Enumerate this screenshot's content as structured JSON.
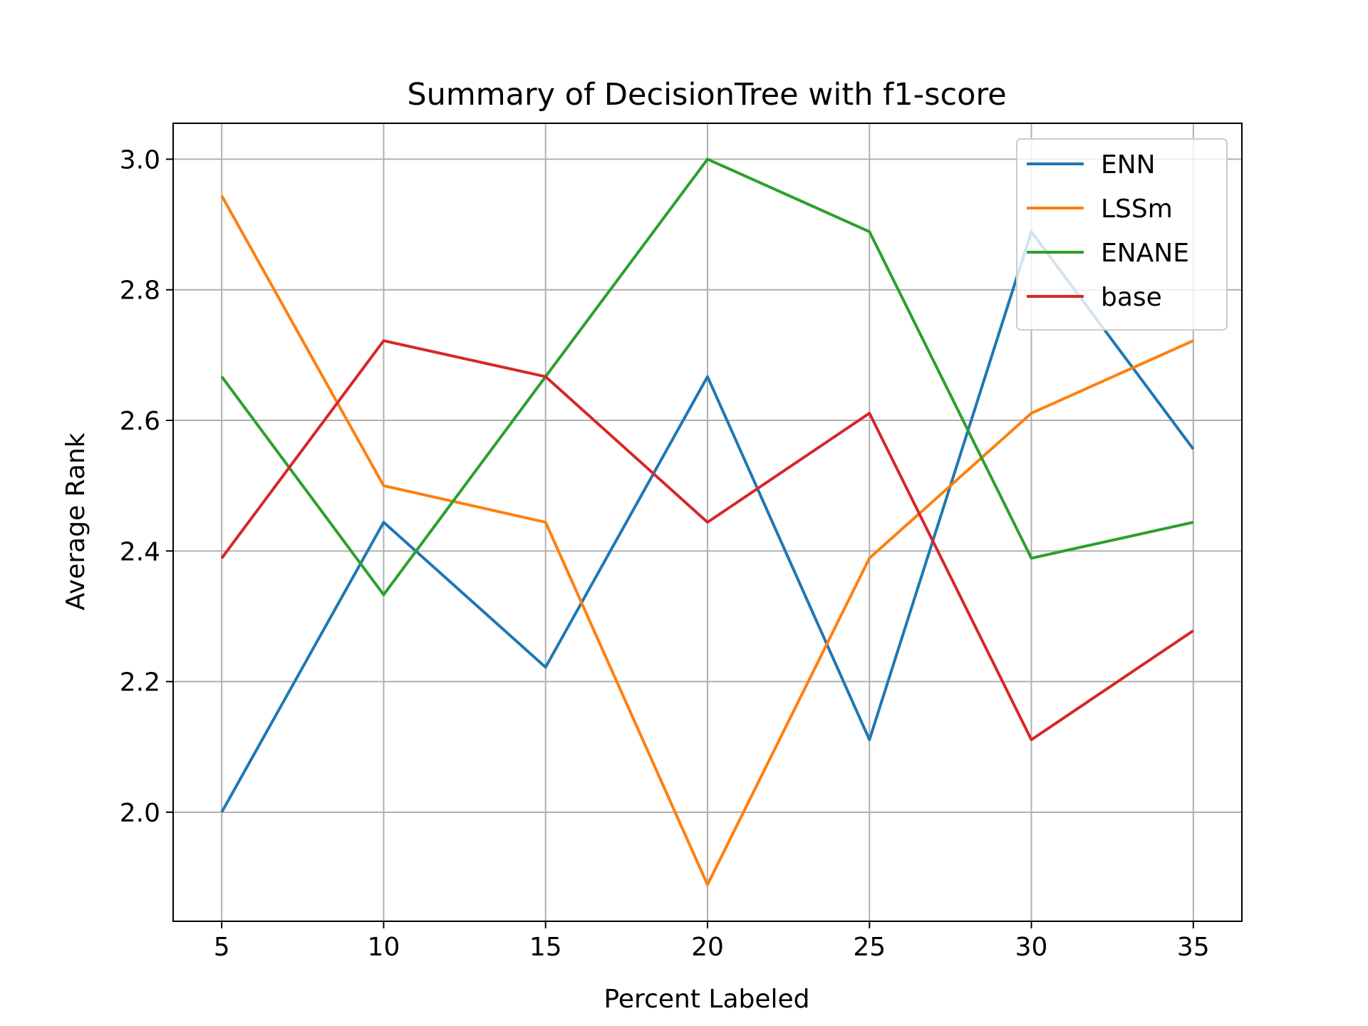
{
  "chart_data": {
    "type": "line",
    "title": "Summary of DecisionTree with f1-score",
    "xlabel": "Percent Labeled",
    "ylabel": "Average Rank",
    "x": [
      5,
      10,
      15,
      20,
      25,
      30,
      35
    ],
    "xticks": [
      5,
      10,
      15,
      20,
      25,
      30,
      35
    ],
    "yticks": [
      2.0,
      2.2,
      2.4,
      2.6,
      2.8,
      3.0
    ],
    "xlim": [
      3.5,
      36.5
    ],
    "ylim": [
      1.833,
      3.055
    ],
    "grid": true,
    "legend_position": "top-right",
    "series": [
      {
        "name": "ENN",
        "color": "#1f77b4",
        "values": [
          2.0,
          2.444,
          2.222,
          2.667,
          2.111,
          2.889,
          2.556
        ]
      },
      {
        "name": "LSSm",
        "color": "#ff7f0e",
        "values": [
          2.944,
          2.5,
          2.444,
          1.889,
          2.389,
          2.611,
          2.722
        ]
      },
      {
        "name": "ENANE",
        "color": "#2ca02c",
        "values": [
          2.667,
          2.333,
          2.667,
          3.0,
          2.889,
          2.389,
          2.444
        ]
      },
      {
        "name": "base",
        "color": "#d62728",
        "values": [
          2.389,
          2.722,
          2.667,
          2.444,
          2.611,
          2.111,
          2.278
        ]
      }
    ]
  }
}
